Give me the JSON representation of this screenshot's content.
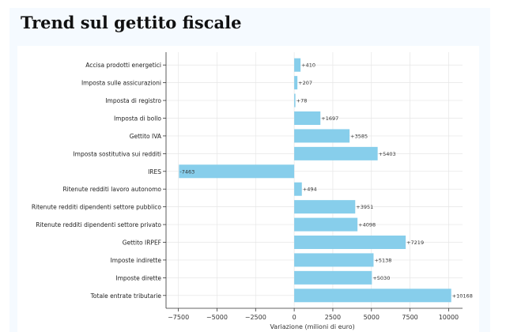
{
  "title": "Trend sul gettito fiscale",
  "chart_data": {
    "type": "bar",
    "orientation": "horizontal",
    "categories": [
      "Accisa prodotti energetici",
      "Imposta sulle assicurazioni",
      "Imposta di registro",
      "Imposta di bollo",
      "Gettito IVA",
      "Imposta sostitutiva sui redditi",
      "IRES",
      "Ritenute redditi lavoro autonomo",
      "Ritenute redditi dipendenti settore pubblico",
      "Ritenute redditi dipendenti settore privato",
      "Gettito IRPEF",
      "Imposte indirette",
      "Imposte dirette",
      "Totale entrate tributarie"
    ],
    "values": [
      410,
      207,
      78,
      1697,
      3585,
      5403,
      -7463,
      494,
      3951,
      4098,
      7219,
      5138,
      5030,
      10168
    ],
    "data_labels": [
      "+410",
      "+207",
      "+78",
      "+1697",
      "+3585",
      "+5403",
      "-7463",
      "+494",
      "+3951",
      "+4098",
      "+7219",
      "+5138",
      "+5030",
      "+10168"
    ],
    "xlabel": "Variazione (milioni di euro)",
    "xlim": [
      -8300,
      10900
    ],
    "xticks": [
      -7500,
      -5000,
      -2500,
      0,
      2500,
      5000,
      7500,
      10000
    ],
    "xtick_labels": [
      "−7500",
      "−5000",
      "−2500",
      "0",
      "2500",
      "5000",
      "7500",
      "10000"
    ],
    "grid": true,
    "bar_color": "#87ceeb"
  }
}
